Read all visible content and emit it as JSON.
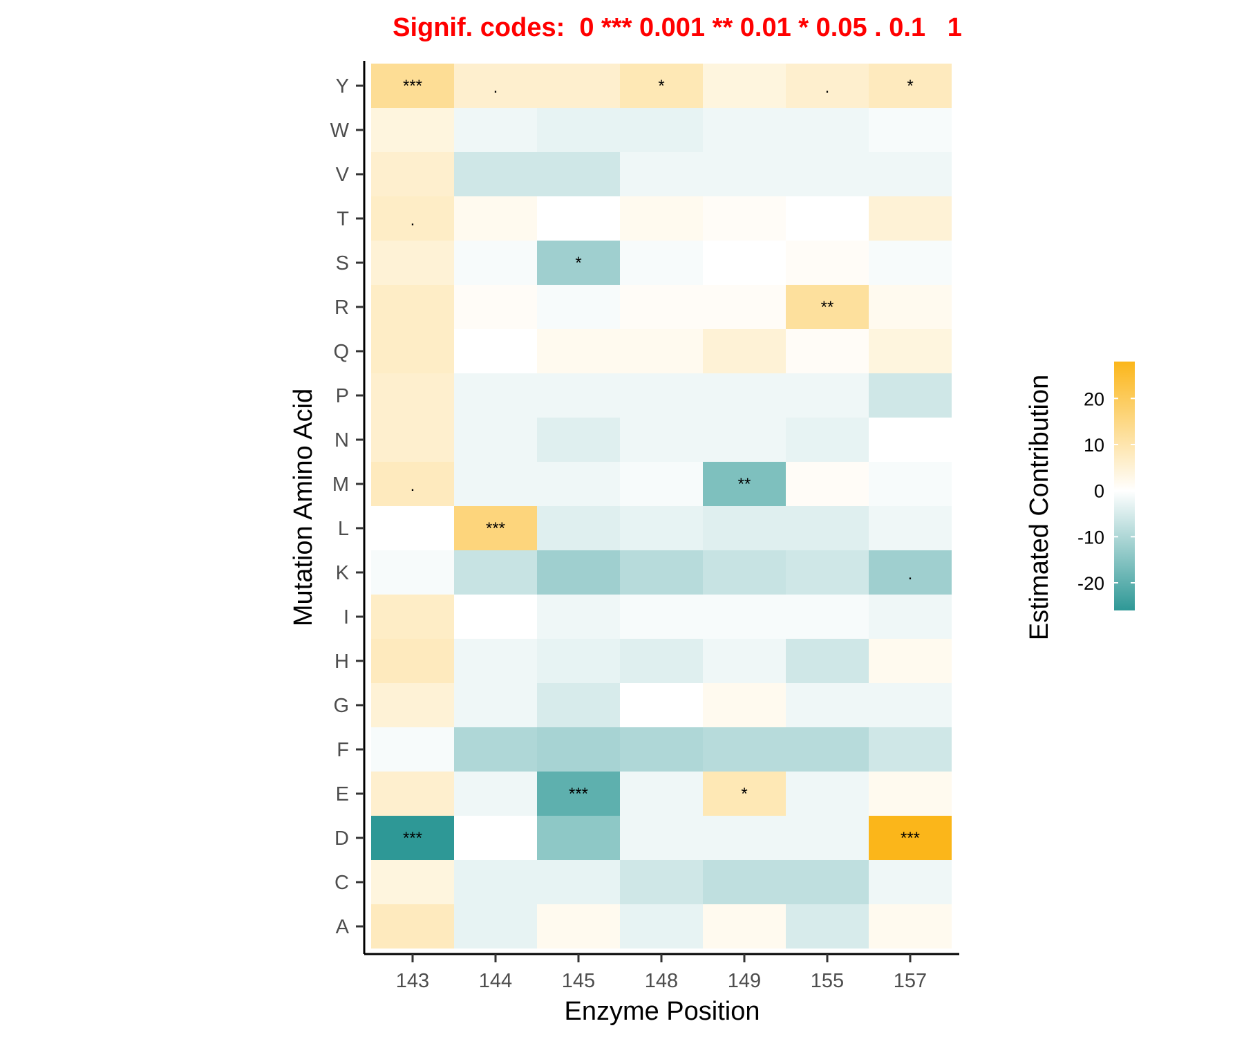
{
  "chart_data": {
    "type": "heatmap",
    "title": "Signif. codes:  0 *** 0.001 ** 0.01 * 0.05 . 0.1   1",
    "title_color": "#FF0000",
    "xlabel": "Enzyme Position",
    "ylabel": "Mutation Amino Acid",
    "x_categories": [
      "143",
      "144",
      "145",
      "148",
      "149",
      "155",
      "157"
    ],
    "y_categories": [
      "A",
      "C",
      "D",
      "E",
      "F",
      "G",
      "H",
      "I",
      "K",
      "L",
      "M",
      "N",
      "P",
      "Q",
      "R",
      "S",
      "T",
      "V",
      "W",
      "Y"
    ],
    "legend": {
      "title": "Estimated Contribution",
      "placement": "right",
      "ticks": [
        "20",
        "10",
        "0",
        "-10",
        "-20"
      ],
      "tick_values": [
        20,
        10,
        0,
        -10,
        -20
      ],
      "range": [
        -26,
        28
      ],
      "colors": {
        "low": "#2E9896",
        "mid": "#FFFFFF",
        "high": "#FBB61A"
      }
    },
    "rows": {
      "A": [
        8,
        -3,
        2,
        -3,
        2,
        -5,
        2
      ],
      "C": [
        4,
        -3,
        -3,
        -6,
        -8,
        -8,
        -2
      ],
      "D": [
        -26,
        0,
        -14,
        -2,
        -2,
        -2,
        28
      ],
      "E": [
        6,
        -2,
        -20,
        -2,
        9,
        -2,
        2
      ],
      "F": [
        -1,
        -10,
        -11,
        -10,
        -9,
        -9,
        -6
      ],
      "G": [
        5,
        -2,
        -5,
        0,
        2,
        -2,
        -2
      ],
      "H": [
        8,
        -2,
        -3,
        -4,
        -2,
        -6,
        2
      ],
      "I": [
        7,
        0,
        -2,
        -1,
        -1,
        -1,
        -2
      ],
      "K": [
        -1,
        -7,
        -12,
        -9,
        -7,
        -6,
        -12
      ],
      "L": [
        0,
        16,
        -4,
        -3,
        -4,
        -4,
        -2
      ],
      "M": [
        8,
        -2,
        -2,
        -1,
        -16,
        1,
        -1
      ],
      "N": [
        6,
        -2,
        -4,
        -2,
        -2,
        -3,
        0
      ],
      "P": [
        6,
        -2,
        -2,
        -2,
        -2,
        -2,
        -6
      ],
      "Q": [
        7,
        0,
        2,
        2,
        5,
        1,
        4
      ],
      "R": [
        7,
        1,
        -1,
        1,
        1,
        12,
        2
      ],
      "S": [
        5,
        -1,
        -12,
        -1,
        0,
        1,
        -1
      ],
      "T": [
        7,
        2,
        0,
        2,
        1,
        0,
        5
      ],
      "V": [
        6,
        -6,
        -6,
        -2,
        -2,
        -2,
        -2
      ],
      "W": [
        4,
        -2,
        -3,
        -3,
        -2,
        -2,
        -1
      ],
      "Y": [
        13,
        6,
        6,
        9,
        4,
        6,
        8
      ]
    },
    "significance": [
      {
        "x": "143",
        "y": "Y",
        "code": "***"
      },
      {
        "x": "144",
        "y": "Y",
        "code": "."
      },
      {
        "x": "148",
        "y": "Y",
        "code": "*"
      },
      {
        "x": "155",
        "y": "Y",
        "code": "."
      },
      {
        "x": "157",
        "y": "Y",
        "code": "*"
      },
      {
        "x": "143",
        "y": "T",
        "code": "."
      },
      {
        "x": "145",
        "y": "S",
        "code": "*"
      },
      {
        "x": "155",
        "y": "R",
        "code": "**"
      },
      {
        "x": "143",
        "y": "M",
        "code": "."
      },
      {
        "x": "149",
        "y": "M",
        "code": "**"
      },
      {
        "x": "144",
        "y": "L",
        "code": "***"
      },
      {
        "x": "157",
        "y": "K",
        "code": "."
      },
      {
        "x": "145",
        "y": "E",
        "code": "***"
      },
      {
        "x": "149",
        "y": "E",
        "code": "*"
      },
      {
        "x": "143",
        "y": "D",
        "code": "***"
      },
      {
        "x": "157",
        "y": "D",
        "code": "***"
      }
    ]
  }
}
